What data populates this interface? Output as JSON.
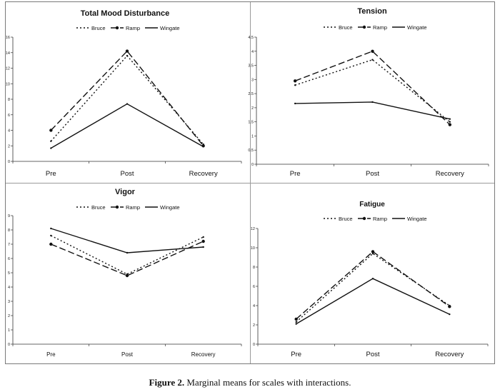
{
  "caption": {
    "label": "Figure 2.",
    "text": "Marginal means for scales with interactions."
  },
  "series_styles": {
    "Bruce": {
      "dash": "2,3",
      "color": "#111111",
      "marker": "none"
    },
    "Ramp": {
      "dash": "9,4",
      "color": "#111111",
      "marker": "circle"
    },
    "Wingate": {
      "dash": "",
      "color": "#111111",
      "marker": "none"
    }
  },
  "chart_data": [
    {
      "type": "line",
      "title": "Total Mood Disturbance",
      "legend": [
        "Bruce",
        "Ramp",
        "Wingate"
      ],
      "legend_position": "top-center",
      "categories": [
        "Pre",
        "Post",
        "Recovery"
      ],
      "ylim": [
        0,
        16
      ],
      "yticks": [
        "0",
        "2",
        "4",
        "6",
        "8",
        "10",
        "12",
        "14",
        "16"
      ],
      "grid": false,
      "series": [
        {
          "name": "Bruce",
          "values": [
            2.6,
            13.6,
            2.2
          ]
        },
        {
          "name": "Ramp",
          "values": [
            4.0,
            14.2,
            2.0
          ]
        },
        {
          "name": "Wingate",
          "values": [
            1.7,
            7.4,
            1.9
          ]
        }
      ]
    },
    {
      "type": "line",
      "title": "Tension",
      "legend": [
        "Bruce",
        "Ramp",
        "Wingate"
      ],
      "legend_position": "top-center",
      "categories": [
        "Pre",
        "Post",
        "Recovery"
      ],
      "ylim": [
        0,
        4.5
      ],
      "yticks": [
        "0",
        "0.5",
        "1",
        "1.5",
        "2",
        "2.5",
        "3",
        "3.5",
        "4",
        "4.5"
      ],
      "grid": false,
      "series": [
        {
          "name": "Bruce",
          "values": [
            2.8,
            3.7,
            1.5
          ]
        },
        {
          "name": "Ramp",
          "values": [
            2.95,
            4.0,
            1.4
          ]
        },
        {
          "name": "Wingate",
          "values": [
            2.15,
            2.2,
            1.6
          ]
        }
      ]
    },
    {
      "type": "line",
      "title": "Vigor",
      "legend": [
        "Bruce",
        "Ramp",
        "Wingate"
      ],
      "legend_position": "top-center",
      "categories": [
        "Pre",
        "Post",
        "Recovery"
      ],
      "ylim": [
        0,
        9
      ],
      "yticks": [
        "0",
        "1",
        "2",
        "3",
        "4",
        "5",
        "6",
        "7",
        "8",
        "9"
      ],
      "grid": false,
      "series": [
        {
          "name": "Bruce",
          "values": [
            7.6,
            4.9,
            7.5
          ]
        },
        {
          "name": "Ramp",
          "values": [
            7.0,
            4.8,
            7.2
          ]
        },
        {
          "name": "Wingate",
          "values": [
            8.1,
            6.4,
            6.8
          ]
        }
      ]
    },
    {
      "type": "line",
      "title": "Fatigue",
      "legend": [
        "Bruce",
        "Ramp",
        "Wingate"
      ],
      "legend_position": "top-center",
      "categories": [
        "Pre",
        "Post",
        "Recovery"
      ],
      "ylim": [
        0,
        12
      ],
      "yticks": [
        "0",
        "2",
        "4",
        "6",
        "8",
        "10",
        "12"
      ],
      "grid": false,
      "series": [
        {
          "name": "Bruce",
          "values": [
            2.3,
            9.4,
            4.0
          ]
        },
        {
          "name": "Ramp",
          "values": [
            2.6,
            9.6,
            3.9
          ]
        },
        {
          "name": "Wingate",
          "values": [
            2.1,
            6.8,
            3.1
          ]
        }
      ]
    }
  ]
}
